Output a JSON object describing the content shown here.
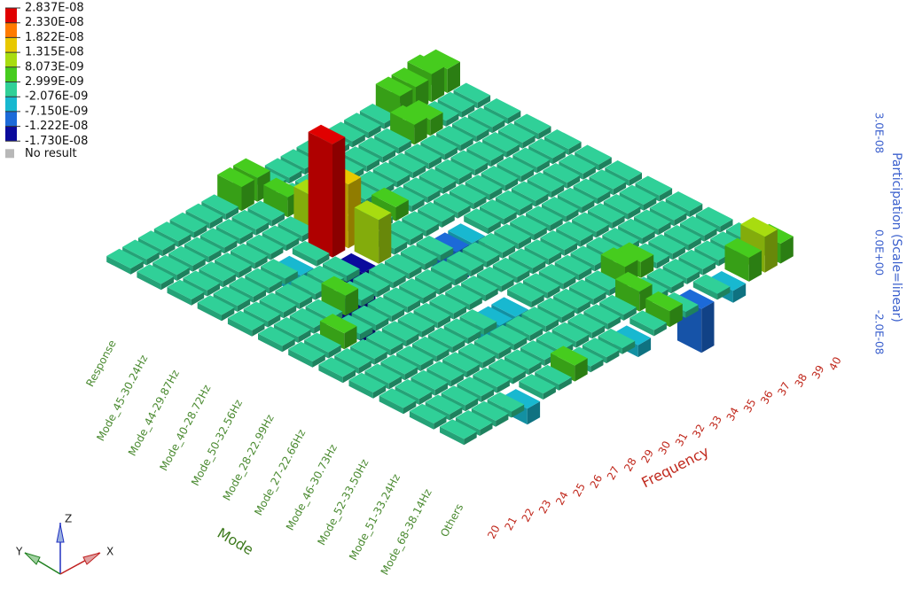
{
  "chart_data": {
    "type": "bar3d",
    "x_label": "Frequency",
    "y_label": "Mode",
    "z_label": "Participation (Scale=linear)",
    "x_categories": [
      "20",
      "21",
      "22",
      "23",
      "24",
      "25",
      "26",
      "27",
      "28",
      "29",
      "30",
      "31",
      "32",
      "33",
      "34",
      "35",
      "36",
      "37",
      "38",
      "39",
      "40"
    ],
    "y_categories": [
      "Response",
      "Mode_45-30.24Hz",
      "Mode_44-29.87Hz",
      "Mode_40-28.72Hz",
      "Mode_50-32.56Hz",
      "Mode_28-22.99Hz",
      "Mode_27-22.66Hz",
      "Mode_46-30.73Hz",
      "Mode_52-33.50Hz",
      "Mode_51-33.24Hz",
      "Mode_68-38.14Hz",
      "Others"
    ],
    "values": [
      [
        1.5e-09,
        1.5e-09,
        1.5e-09,
        1.5e-09,
        1.5e-09,
        1.5e-09,
        1.5e-09,
        6e-09,
        6e-09,
        1.5e-09,
        1.5e-09,
        1.5e-09,
        1.5e-09,
        1.5e-09,
        1.5e-09,
        1.5e-09,
        1.5e-09,
        6e-09,
        6e-09,
        7e-09,
        6e-09
      ],
      [
        1.5e-09,
        1.5e-09,
        1.5e-09,
        1.5e-09,
        1.5e-09,
        1.5e-09,
        1.5e-09,
        1.5e-09,
        5e-09,
        1.5e-09,
        1.5e-09,
        1.5e-09,
        1.5e-09,
        1.5e-09,
        1.5e-09,
        1.5e-09,
        5e-09,
        4e-09,
        1.5e-09,
        1.5e-09,
        1.5e-09
      ],
      [
        1.5e-09,
        1.5e-09,
        1.5e-09,
        1.5e-09,
        1.5e-09,
        1.5e-09,
        1.5e-09,
        1.5e-09,
        8.5e-09,
        1.5e-09,
        1.5e-09,
        1.5e-09,
        1.5e-09,
        1.5e-09,
        1.5e-09,
        1.5e-09,
        1.5e-09,
        1.5e-09,
        1.5e-09,
        1.5e-09,
        1.5e-09
      ],
      [
        1.5e-09,
        1.5e-09,
        1.5e-09,
        1.5e-09,
        1.5e-09,
        -5e-09,
        1.5e-09,
        2.837e-08,
        1.6e-08,
        1.5e-09,
        1.5e-09,
        3.5e-09,
        1.5e-09,
        1.5e-09,
        1.5e-09,
        1.5e-09,
        1.5e-09,
        1.5e-09,
        1.5e-09,
        1.5e-09,
        1.5e-09
      ],
      [
        1.5e-09,
        1.5e-09,
        1.5e-09,
        1.5e-09,
        1.5e-09,
        1.5e-09,
        1.5e-09,
        -1.73e-08,
        1.1e-08,
        1.5e-09,
        1.5e-09,
        1.5e-09,
        1.5e-09,
        1.5e-09,
        1.5e-09,
        1.5e-09,
        1.5e-09,
        1.5e-09,
        1.5e-09,
        1.5e-09,
        1.5e-09
      ],
      [
        1.5e-09,
        1.5e-09,
        1.5e-09,
        1.5e-09,
        5e-09,
        1.5e-09,
        1.5e-09,
        1.5e-09,
        1.5e-09,
        1.5e-09,
        1.5e-09,
        -8e-09,
        -6e-09,
        1.5e-09,
        1.5e-09,
        1.5e-09,
        1.5e-09,
        1.5e-09,
        1.5e-09,
        1.5e-09,
        1.5e-09
      ],
      [
        1.5e-09,
        1.5e-09,
        4e-09,
        1.5e-09,
        1.5e-09,
        1.5e-09,
        1.5e-09,
        1.5e-09,
        1.5e-09,
        1.5e-09,
        1.5e-09,
        1.5e-09,
        1.5e-09,
        1.5e-09,
        1.5e-09,
        1.5e-09,
        1.5e-09,
        1.5e-09,
        1.5e-09,
        1.5e-09,
        1.5e-09
      ],
      [
        1.5e-09,
        1.5e-09,
        1.5e-09,
        1.5e-09,
        1.5e-09,
        1.5e-09,
        1.5e-09,
        1.5e-09,
        1.5e-09,
        1.5e-09,
        1.5e-09,
        1.5e-09,
        1.5e-09,
        1.5e-09,
        1.5e-09,
        1.5e-09,
        1.5e-09,
        1.5e-09,
        1.5e-09,
        1.5e-09,
        1.5e-09
      ],
      [
        1.5e-09,
        1.5e-09,
        1.5e-09,
        1.5e-09,
        1.5e-09,
        1.5e-09,
        1.5e-09,
        1.5e-09,
        -6e-09,
        -5e-09,
        1.5e-09,
        1.5e-09,
        1.5e-09,
        1.5e-09,
        1.5e-09,
        1.5e-09,
        1.5e-09,
        1.5e-09,
        1.5e-09,
        1.5e-09,
        1.5e-09
      ],
      [
        1.5e-09,
        1.5e-09,
        1.5e-09,
        1.5e-09,
        1.5e-09,
        1.5e-09,
        1.5e-09,
        1.5e-09,
        1.5e-09,
        1.5e-09,
        1.5e-09,
        1.5e-09,
        1.5e-09,
        1.5e-09,
        5e-09,
        4e-09,
        1.5e-09,
        1.5e-09,
        1.5e-09,
        1.5e-09,
        1.5e-09
      ],
      [
        1.5e-09,
        1.5e-09,
        1.5e-09,
        1.5e-09,
        1.5e-09,
        1.5e-09,
        1.5e-09,
        1.5e-09,
        1.5e-09,
        1.5e-09,
        1.5e-09,
        1.5e-09,
        1.5e-09,
        5e-09,
        1.5e-09,
        1.5e-09,
        1.5e-09,
        1.5e-09,
        1.5e-09,
        1.5e-09,
        1.5e-09
      ],
      [
        1.5e-09,
        1.5e-09,
        1.5e-09,
        1.5e-09,
        -4e-09,
        1.5e-09,
        1.5e-09,
        4e-09,
        1.5e-09,
        1.5e-09,
        1.5e-09,
        -3e-09,
        1.5e-09,
        4e-09,
        1.5e-09,
        -1.1e-08,
        1.5e-09,
        -3e-09,
        6e-09,
        9e-09,
        5e-09
      ]
    ],
    "zlim": [
      -2e-08,
      3e-08
    ],
    "zticks": [
      {
        "value": 3e-08,
        "label": "3.0E-08"
      },
      {
        "value": 0,
        "label": "0.0E+00"
      },
      {
        "value": -2e-08,
        "label": "-2.0E-08"
      }
    ],
    "legend": {
      "ticks": [
        {
          "value": 2.837e-08,
          "label": "2.837E-08"
        },
        {
          "value": 2.33e-08,
          "label": "2.330E-08"
        },
        {
          "value": 1.822e-08,
          "label": "1.822E-08"
        },
        {
          "value": 1.315e-08,
          "label": "1.315E-08"
        },
        {
          "value": 8.073e-09,
          "label": "8.073E-09"
        },
        {
          "value": 2.999e-09,
          "label": "2.999E-09"
        },
        {
          "value": -2.076e-09,
          "label": "-2.076E-09"
        },
        {
          "value": -7.15e-09,
          "label": "-7.150E-09"
        },
        {
          "value": -1.222e-08,
          "label": "-1.222E-08"
        },
        {
          "value": -1.73e-08,
          "label": "-1.730E-08"
        }
      ],
      "colors": [
        "#e00000",
        "#ff7a00",
        "#e8c800",
        "#a8dc10",
        "#46cc1e",
        "#30d098",
        "#18b8d0",
        "#1c6ad8",
        "#0a0a9c"
      ],
      "no_result_label": "No result",
      "no_result_color": "#b8b8b8"
    },
    "triad": {
      "x": "X",
      "y": "Y",
      "z": "Z"
    }
  }
}
